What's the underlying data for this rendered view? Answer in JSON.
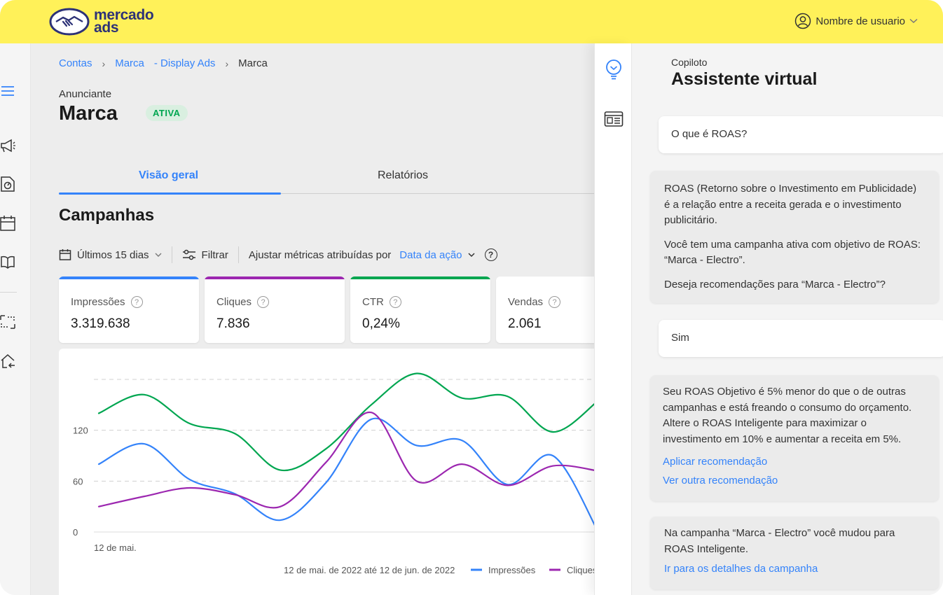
{
  "brand": {
    "name_line1": "mercado",
    "name_line2": "ads",
    "yellow": "#fff159",
    "navy": "#2d3277"
  },
  "header": {
    "user_label": "Nombre de usuario"
  },
  "rail": {
    "icons": [
      "menu-icon",
      "megaphone-icon",
      "report-icon",
      "calendar-icon",
      "book-icon",
      "swap-icon",
      "home-return-icon"
    ]
  },
  "breadcrumb": {
    "items": [
      "Contas",
      "Marca",
      "- Display Ads",
      "Marca"
    ]
  },
  "advertiser": {
    "label": "Anunciante",
    "name": "Marca",
    "status": "ATIVA"
  },
  "tabs": [
    {
      "label": "Visão geral",
      "active": true
    },
    {
      "label": "Relatórios",
      "active": false
    }
  ],
  "section_title": "Campanhas",
  "filters": {
    "date_range": "Últimos 15 dias",
    "filter_label": "Filtrar",
    "attribution_label": "Ajustar métricas atribuídas por",
    "attribution_value": "Data da ação"
  },
  "metrics": [
    {
      "label": "Impressões",
      "value": "3.319.638",
      "color": "#3483fa"
    },
    {
      "label": "Cliques",
      "value": "7.836",
      "color": "#9c27b0"
    },
    {
      "label": "CTR",
      "value": "0,24%",
      "color": "#00a650"
    },
    {
      "label": "Vendas",
      "value": "2.061",
      "color": "#3483fa"
    }
  ],
  "chart_data": {
    "type": "line",
    "x_start_label": "12 de mai.",
    "range_label": "12 de mai. de 2022 até 12 de jun. de 2022",
    "yticks": [
      0,
      60,
      120
    ],
    "ylim": [
      0,
      180
    ],
    "grid": true,
    "series": [
      {
        "name": "",
        "color": "#00a650",
        "values": [
          140,
          162,
          128,
          116,
          73,
          98,
          150,
          187,
          158,
          160,
          118,
          155
        ]
      },
      {
        "name": "Impressões",
        "color": "#3483fa",
        "values": [
          80,
          104,
          62,
          45,
          14,
          58,
          133,
          102,
          108,
          56,
          90,
          0
        ]
      },
      {
        "name": "Cliques",
        "color": "#9c27b0",
        "values": [
          30,
          42,
          52,
          44,
          30,
          82,
          141,
          60,
          80,
          55,
          78,
          72
        ]
      }
    ]
  },
  "panel": {
    "kicker": "Copiloto",
    "title": "Assistente virtual",
    "messages": [
      {
        "role": "user",
        "text": "O que é ROAS?"
      },
      {
        "role": "bot",
        "paragraphs": [
          "ROAS (Retorno sobre o Investimento em Publicidade) é a relação entre a receita gerada e o investimento publicitário.",
          "Você tem uma campanha ativa com objetivo de ROAS: “Marca - Electro”.",
          "Deseja recomendações para “Marca - Electro”?"
        ]
      },
      {
        "role": "user",
        "text": "Sim"
      },
      {
        "role": "bot",
        "paragraphs": [
          "Seu ROAS Objetivo é 5% menor do que o de outras campanhas e está freando o consumo do orçamento. Altere o ROAS Inteligente para maximizar o investimento em 10% e aumentar a receita em 5%."
        ],
        "links": [
          "Aplicar recomendação",
          "Ver outra recomendação"
        ]
      },
      {
        "role": "bot",
        "paragraphs": [
          "Na campanha “Marca - Electro” você mudou para ROAS Inteligente."
        ],
        "links": [
          "Ir para os detalhes da campanha"
        ]
      }
    ]
  }
}
